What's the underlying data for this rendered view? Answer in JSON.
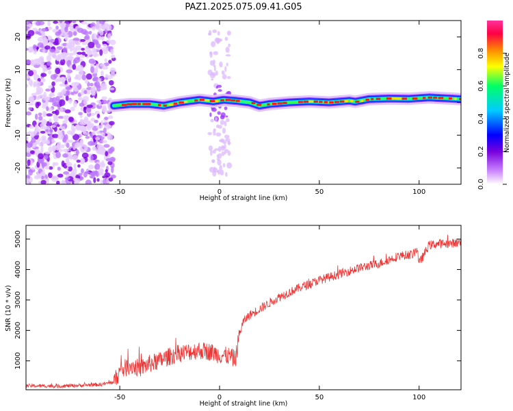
{
  "title": "PAZ1.2025.075.09.41.G05",
  "chart_data": [
    {
      "type": "heatmap",
      "xlabel": "Height of straight line (km)",
      "ylabel": "Frequency (Hz)",
      "xlim": [
        -97,
        121
      ],
      "ylim": [
        -25,
        25
      ],
      "xticks": [
        "-50",
        "0",
        "50",
        "100"
      ],
      "yticks": [
        "-20",
        "-10",
        "0",
        "10",
        "20"
      ],
      "colorbar": {
        "label": "Normalized spectral amplitude",
        "range": [
          0,
          1
        ],
        "ticks": [
          "0.0",
          "0.2",
          "0.4",
          "0.6",
          "0.8"
        ],
        "colors": [
          "#ffffff",
          "#cc88ff",
          "#7700dd",
          "#0000ff",
          "#00ccff",
          "#00ff66",
          "#ffff00",
          "#ff8800",
          "#ff0044",
          "#ff3399"
        ]
      },
      "noise_region_km": [
        -97,
        -53
      ],
      "noise_band_km": [
        -5,
        5
      ],
      "ridge": {
        "x": [
          -53,
          -45,
          -35,
          -28,
          -20,
          -10,
          -3,
          2,
          8,
          15,
          20,
          25,
          35,
          45,
          55,
          65,
          68,
          75,
          85,
          95,
          105,
          115,
          121
        ],
        "y": [
          -1,
          -0.5,
          -0.5,
          -1,
          0,
          0.8,
          0.3,
          0.8,
          0.5,
          0,
          -1,
          -0.5,
          0,
          0.3,
          0,
          0.5,
          0.2,
          1,
          1.2,
          1.1,
          1.5,
          1.2,
          1.0
        ]
      }
    },
    {
      "type": "line",
      "xlabel": "Height of straight line (km)",
      "ylabel": "SNR (10 * v/v)",
      "xlim": [
        -97,
        121
      ],
      "ylim": [
        50,
        5450
      ],
      "xticks": [
        "-50",
        "0",
        "50",
        "100"
      ],
      "yticks": [
        "1000",
        "2000",
        "3000",
        "4000",
        "5000"
      ],
      "color": "#ee3333",
      "series": [
        {
          "x": [
            -97,
            -80,
            -60,
            -53,
            -50,
            -45,
            -40,
            -35,
            -30,
            -25,
            -20,
            -15,
            -10,
            -5,
            0,
            5,
            8,
            10,
            12,
            15,
            20,
            30,
            40,
            50,
            60,
            70,
            80,
            90,
            97,
            99,
            100,
            105,
            110,
            115,
            121
          ],
          "y": [
            180,
            170,
            220,
            300,
            650,
            850,
            750,
            900,
            1000,
            1150,
            1250,
            1300,
            1350,
            1300,
            1200,
            1150,
            1050,
            1900,
            2300,
            2500,
            2700,
            3100,
            3400,
            3650,
            3850,
            4050,
            4200,
            4450,
            4500,
            4700,
            4200,
            4800,
            4850,
            4850,
            4900
          ]
        }
      ]
    }
  ]
}
